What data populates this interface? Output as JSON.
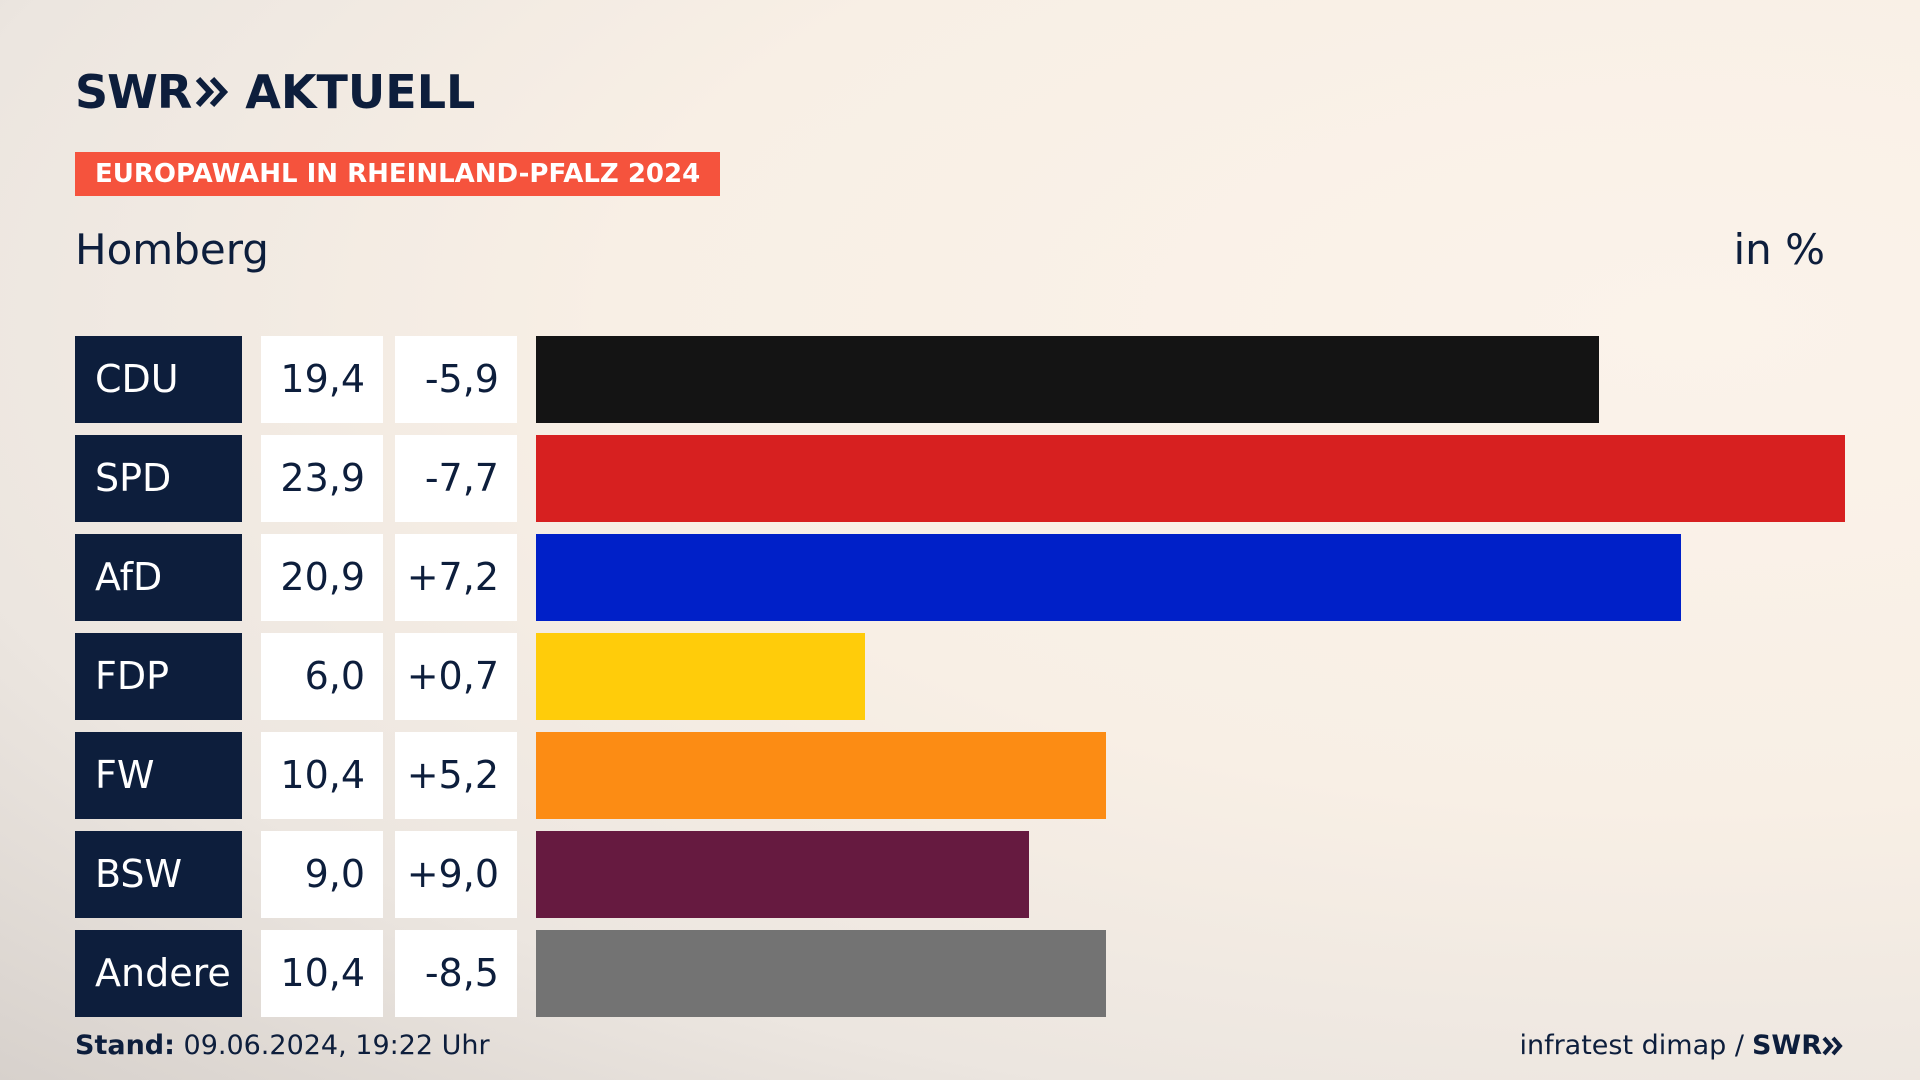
{
  "logo": {
    "brand": "SWR",
    "product": "AKTUELL"
  },
  "tag": "EUROPAWAHL IN RHEINLAND-PFALZ 2024",
  "title": "Homberg",
  "unit": "in %",
  "colors": {
    "navy": "#0d1e3c",
    "tag": "#f5533d"
  },
  "chart_data": {
    "type": "bar",
    "orientation": "horizontal",
    "categories": [
      "CDU",
      "SPD",
      "AfD",
      "FDP",
      "FW",
      "BSW",
      "Andere"
    ],
    "values": [
      19.4,
      23.9,
      20.9,
      6.0,
      10.4,
      9.0,
      10.4
    ],
    "value_labels": [
      "19,4",
      "23,9",
      "20,9",
      "6,0",
      "10,4",
      "9,0",
      "10,4"
    ],
    "diffs": [
      -5.9,
      -7.7,
      7.2,
      0.7,
      5.2,
      9.0,
      -8.5
    ],
    "diff_labels": [
      "-5,9",
      "-7,7",
      "+7,2",
      "+0,7",
      "+5,2",
      "+9,0",
      "-8,5"
    ],
    "colors": [
      "#141414",
      "#d72020",
      "#0020c8",
      "#ffcc0a",
      "#fc8c14",
      "#661a40",
      "#737373"
    ],
    "xlim": [
      0,
      23.9
    ],
    "grid": false,
    "title": "Homberg",
    "xlabel": "",
    "ylabel": "in %"
  },
  "footer": {
    "stand_label": "Stand:",
    "stand_value": "09.06.2024, 19:22 Uhr",
    "source": "infratest dimap /",
    "source_brand": "SWR"
  }
}
